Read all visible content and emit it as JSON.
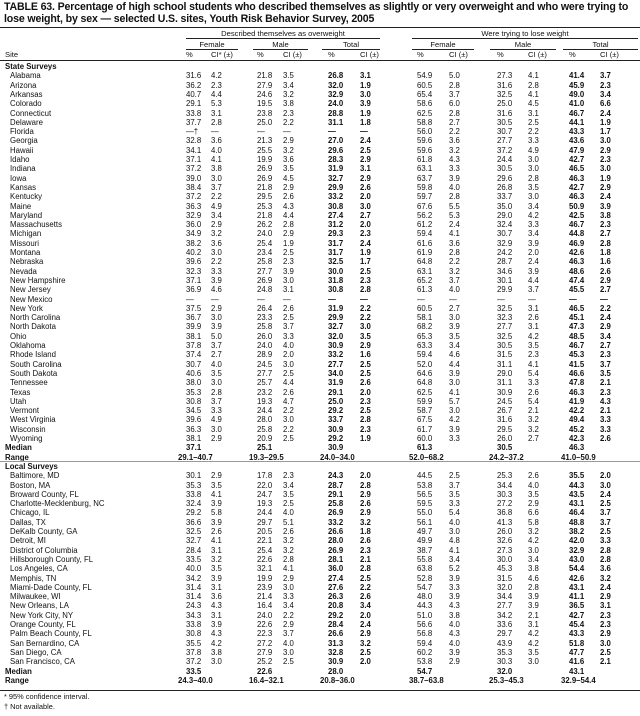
{
  "title": "TABLE 63. Percentage of high school students who described themselves as slightly or very overweight and who were trying to lose weight, by sex — selected U.S. sites, Youth Risk Behavior Survey, 2005",
  "headers": {
    "group1": "Described themselves as overweight",
    "group2": "Were trying to lose weight",
    "female": "Female",
    "male": "Male",
    "total": "Total",
    "site": "Site",
    "pct": "%",
    "ci_star": "CI* (±)",
    "ci": "CI (±)"
  },
  "state": {
    "label": "State Surveys",
    "rows": [
      {
        "site": "Alabama",
        "v": [
          "31.6",
          "4.2",
          "21.8",
          "3.5",
          "26.8",
          "3.1",
          "54.9",
          "5.0",
          "27.3",
          "4.1",
          "41.4",
          "3.7"
        ]
      },
      {
        "site": "Arizona",
        "v": [
          "36.2",
          "2.3",
          "27.9",
          "3.4",
          "32.0",
          "1.9",
          "60.5",
          "2.8",
          "31.6",
          "2.8",
          "45.9",
          "2.3"
        ]
      },
      {
        "site": "Arkansas",
        "v": [
          "40.7",
          "4.4",
          "24.6",
          "3.2",
          "32.9",
          "3.0",
          "65.4",
          "3.7",
          "32.5",
          "4.1",
          "49.0",
          "3.4"
        ]
      },
      {
        "site": "Colorado",
        "v": [
          "29.1",
          "5.3",
          "19.5",
          "3.8",
          "24.0",
          "3.9",
          "58.6",
          "6.0",
          "25.0",
          "4.5",
          "41.0",
          "6.6"
        ]
      },
      {
        "site": "Connecticut",
        "v": [
          "33.8",
          "3.1",
          "23.8",
          "2.3",
          "28.8",
          "1.9",
          "62.5",
          "2.8",
          "31.6",
          "3.1",
          "46.7",
          "2.4"
        ]
      },
      {
        "site": "Delaware",
        "v": [
          "37.7",
          "2.8",
          "25.0",
          "2.2",
          "31.1",
          "1.8",
          "58.8",
          "2.7",
          "30.5",
          "2.5",
          "44.1",
          "1.9"
        ]
      },
      {
        "site": "Florida",
        "v": [
          "—†",
          "—",
          "—",
          "—",
          "—",
          "—",
          "56.0",
          "2.2",
          "30.7",
          "2.2",
          "43.3",
          "1.7"
        ]
      },
      {
        "site": "Georgia",
        "v": [
          "32.8",
          "3.6",
          "21.3",
          "2.9",
          "27.0",
          "2.4",
          "59.6",
          "3.6",
          "27.7",
          "3.3",
          "43.6",
          "3.0"
        ]
      },
      {
        "site": "Hawaii",
        "v": [
          "34.1",
          "4.0",
          "25.5",
          "3.2",
          "29.6",
          "2.5",
          "59.6",
          "3.2",
          "37.2",
          "4.9",
          "47.9",
          "2.9"
        ]
      },
      {
        "site": "Idaho",
        "v": [
          "37.1",
          "4.1",
          "19.9",
          "3.6",
          "28.3",
          "2.9",
          "61.8",
          "4.3",
          "24.4",
          "3.0",
          "42.7",
          "2.3"
        ]
      },
      {
        "site": "Indiana",
        "v": [
          "37.2",
          "3.8",
          "26.9",
          "3.5",
          "31.9",
          "3.1",
          "63.1",
          "3.3",
          "30.5",
          "3.0",
          "46.5",
          "3.0"
        ]
      },
      {
        "site": "Iowa",
        "v": [
          "39.0",
          "3.0",
          "26.9",
          "4.5",
          "32.7",
          "2.9",
          "63.7",
          "3.9",
          "29.6",
          "2.8",
          "46.3",
          "1.9"
        ]
      },
      {
        "site": "Kansas",
        "v": [
          "38.4",
          "3.7",
          "21.8",
          "2.9",
          "29.9",
          "2.6",
          "59.8",
          "4.0",
          "26.8",
          "3.5",
          "42.7",
          "2.9"
        ]
      },
      {
        "site": "Kentucky",
        "v": [
          "37.2",
          "2.2",
          "29.5",
          "2.6",
          "33.2",
          "2.0",
          "59.7",
          "2.8",
          "33.7",
          "3.0",
          "46.3",
          "2.4"
        ]
      },
      {
        "site": "Maine",
        "v": [
          "36.3",
          "4.9",
          "25.3",
          "4.3",
          "30.8",
          "3.0",
          "67.6",
          "5.5",
          "35.0",
          "3.4",
          "50.9",
          "3.9"
        ]
      },
      {
        "site": "Maryland",
        "v": [
          "32.9",
          "3.4",
          "21.8",
          "4.4",
          "27.4",
          "2.7",
          "56.2",
          "5.3",
          "29.0",
          "4.2",
          "42.5",
          "3.8"
        ]
      },
      {
        "site": "Massachusetts",
        "v": [
          "36.0",
          "2.9",
          "26.2",
          "2.8",
          "31.2",
          "2.0",
          "61.2",
          "2.4",
          "32.4",
          "3.3",
          "46.7",
          "2.3"
        ]
      },
      {
        "site": "Michigan",
        "v": [
          "34.9",
          "3.2",
          "24.0",
          "2.9",
          "29.3",
          "2.3",
          "59.4",
          "4.1",
          "30.7",
          "3.4",
          "44.8",
          "2.7"
        ]
      },
      {
        "site": "Missouri",
        "v": [
          "38.2",
          "3.6",
          "25.4",
          "1.9",
          "31.7",
          "2.4",
          "61.6",
          "3.6",
          "32.9",
          "3.9",
          "46.9",
          "2.8"
        ]
      },
      {
        "site": "Montana",
        "v": [
          "40.2",
          "3.0",
          "23.4",
          "2.5",
          "31.7",
          "1.9",
          "61.9",
          "2.8",
          "24.2",
          "2.0",
          "42.6",
          "1.8"
        ]
      },
      {
        "site": "Nebraska",
        "v": [
          "39.6",
          "2.2",
          "25.8",
          "2.3",
          "32.5",
          "1.7",
          "64.8",
          "2.2",
          "28.7",
          "2.4",
          "46.3",
          "1.6"
        ]
      },
      {
        "site": "Nevada",
        "v": [
          "32.3",
          "3.3",
          "27.7",
          "3.9",
          "30.0",
          "2.5",
          "63.1",
          "3.2",
          "34.6",
          "3.9",
          "48.6",
          "2.6"
        ]
      },
      {
        "site": "New Hampshire",
        "v": [
          "37.1",
          "3.9",
          "26.9",
          "3.0",
          "31.8",
          "2.3",
          "65.2",
          "3.7",
          "30.1",
          "4.4",
          "47.4",
          "2.9"
        ]
      },
      {
        "site": "New Jersey",
        "v": [
          "36.9",
          "4.6",
          "24.8",
          "3.1",
          "30.8",
          "2.8",
          "61.3",
          "4.0",
          "29.9",
          "3.7",
          "45.5",
          "2.7"
        ]
      },
      {
        "site": "New Mexico",
        "v": [
          "—",
          "—",
          "—",
          "—",
          "—",
          "—",
          "—",
          "—",
          "—",
          "—",
          "—",
          "—"
        ]
      },
      {
        "site": "New York",
        "v": [
          "37.5",
          "2.9",
          "26.4",
          "2.6",
          "31.9",
          "2.2",
          "60.5",
          "2.7",
          "32.5",
          "3.1",
          "46.5",
          "2.2"
        ]
      },
      {
        "site": "North Carolina",
        "v": [
          "36.7",
          "3.0",
          "23.3",
          "2.5",
          "29.9",
          "2.2",
          "58.1",
          "3.0",
          "32.3",
          "2.6",
          "45.1",
          "2.4"
        ]
      },
      {
        "site": "North Dakota",
        "v": [
          "39.9",
          "3.9",
          "25.8",
          "3.7",
          "32.7",
          "3.0",
          "68.2",
          "3.9",
          "27.7",
          "3.1",
          "47.3",
          "2.9"
        ]
      },
      {
        "site": "Ohio",
        "v": [
          "38.1",
          "5.0",
          "26.0",
          "3.3",
          "32.0",
          "3.5",
          "65.3",
          "3.5",
          "32.5",
          "4.2",
          "48.5",
          "3.4"
        ]
      },
      {
        "site": "Oklahoma",
        "v": [
          "37.8",
          "3.7",
          "24.0",
          "4.0",
          "30.9",
          "2.9",
          "63.3",
          "3.4",
          "30.5",
          "3.5",
          "46.7",
          "2.7"
        ]
      },
      {
        "site": "Rhode Island",
        "v": [
          "37.4",
          "2.7",
          "28.9",
          "2.0",
          "33.2",
          "1.6",
          "59.4",
          "4.6",
          "31.5",
          "2.3",
          "45.3",
          "2.3"
        ]
      },
      {
        "site": "South Carolina",
        "v": [
          "30.7",
          "4.0",
          "24.5",
          "3.0",
          "27.7",
          "2.5",
          "52.0",
          "4.4",
          "31.1",
          "4.1",
          "41.5",
          "3.7"
        ]
      },
      {
        "site": "South Dakota",
        "v": [
          "40.6",
          "3.5",
          "27.7",
          "2.5",
          "34.0",
          "2.5",
          "64.6",
          "3.9",
          "29.0",
          "5.4",
          "46.6",
          "3.5"
        ]
      },
      {
        "site": "Tennessee",
        "v": [
          "38.0",
          "3.0",
          "25.7",
          "4.4",
          "31.9",
          "2.6",
          "64.8",
          "3.0",
          "31.1",
          "3.3",
          "47.8",
          "2.1"
        ]
      },
      {
        "site": "Texas",
        "v": [
          "35.3",
          "2.8",
          "23.2",
          "2.6",
          "29.1",
          "2.0",
          "62.5",
          "4.1",
          "30.9",
          "2.6",
          "46.3",
          "2.3"
        ]
      },
      {
        "site": "Utah",
        "v": [
          "30.8",
          "3.7",
          "19.3",
          "4.7",
          "25.0",
          "2.3",
          "59.9",
          "5.7",
          "24.5",
          "5.4",
          "41.9",
          "4.3"
        ]
      },
      {
        "site": "Vermont",
        "v": [
          "34.5",
          "3.3",
          "24.4",
          "2.2",
          "29.2",
          "2.5",
          "58.7",
          "3.0",
          "26.7",
          "2.1",
          "42.2",
          "2.1"
        ]
      },
      {
        "site": "West Virginia",
        "v": [
          "39.6",
          "4.9",
          "28.0",
          "3.0",
          "33.7",
          "2.8",
          "67.5",
          "4.2",
          "31.6",
          "3.2",
          "49.4",
          "3.3"
        ]
      },
      {
        "site": "Wisconsin",
        "v": [
          "36.3",
          "3.0",
          "25.8",
          "2.2",
          "30.9",
          "2.3",
          "61.7",
          "3.9",
          "29.5",
          "3.2",
          "45.2",
          "3.3"
        ]
      },
      {
        "site": "Wyoming",
        "v": [
          "38.1",
          "2.9",
          "20.9",
          "2.5",
          "29.2",
          "1.9",
          "60.0",
          "3.3",
          "26.0",
          "2.7",
          "42.3",
          "2.6"
        ]
      }
    ],
    "median_label": "Median",
    "median": [
      "37.1",
      "25.1",
      "30.9",
      "61.3",
      "30.5",
      "46.3"
    ],
    "range_label": "Range",
    "range": [
      "29.1–40.7",
      "19.3–29.5",
      "24.0–34.0",
      "52.0–68.2",
      "24.2–37.2",
      "41.0–50.9"
    ]
  },
  "local": {
    "label": "Local Surveys",
    "rows": [
      {
        "site": "Baltimore, MD",
        "v": [
          "30.1",
          "2.9",
          "17.8",
          "2.3",
          "24.3",
          "2.0",
          "44.5",
          "2.5",
          "25.3",
          "2.6",
          "35.5",
          "2.0"
        ]
      },
      {
        "site": "Boston, MA",
        "v": [
          "35.3",
          "3.5",
          "22.0",
          "3.4",
          "28.7",
          "2.8",
          "53.8",
          "3.7",
          "34.4",
          "4.0",
          "44.3",
          "3.0"
        ]
      },
      {
        "site": "Broward County, FL",
        "v": [
          "33.8",
          "4.1",
          "24.7",
          "3.5",
          "29.1",
          "2.9",
          "56.5",
          "3.5",
          "30.3",
          "3.5",
          "43.5",
          "2.4"
        ]
      },
      {
        "site": "Charlotte-Mecklenburg, NC",
        "v": [
          "32.4",
          "3.9",
          "19.3",
          "2.5",
          "25.8",
          "2.6",
          "59.5",
          "3.3",
          "27.2",
          "2.9",
          "43.1",
          "2.5"
        ]
      },
      {
        "site": "Chicago, IL",
        "v": [
          "29.2",
          "5.8",
          "24.4",
          "4.0",
          "26.9",
          "2.9",
          "55.0",
          "5.4",
          "36.8",
          "6.6",
          "46.4",
          "3.7"
        ]
      },
      {
        "site": "Dallas, TX",
        "v": [
          "36.6",
          "3.9",
          "29.7",
          "5.1",
          "33.2",
          "3.2",
          "56.1",
          "4.0",
          "41.3",
          "5.8",
          "48.8",
          "3.7"
        ]
      },
      {
        "site": "DeKalb County, GA",
        "v": [
          "32.5",
          "2.6",
          "20.5",
          "2.6",
          "26.6",
          "1.8",
          "49.7",
          "3.0",
          "26.0",
          "3.2",
          "38.2",
          "2.5"
        ]
      },
      {
        "site": "Detroit, MI",
        "v": [
          "32.7",
          "4.1",
          "22.1",
          "3.2",
          "28.0",
          "2.6",
          "49.9",
          "4.8",
          "32.6",
          "4.2",
          "42.0",
          "3.3"
        ]
      },
      {
        "site": "District of Columbia",
        "v": [
          "28.4",
          "3.1",
          "25.4",
          "3.2",
          "26.9",
          "2.3",
          "38.7",
          "4.1",
          "27.3",
          "3.0",
          "32.9",
          "2.8"
        ]
      },
      {
        "site": "Hillsborough County, FL",
        "v": [
          "33.5",
          "3.2",
          "22.6",
          "2.8",
          "28.1",
          "2.1",
          "55.8",
          "3.4",
          "30.0",
          "3.4",
          "43.0",
          "2.8"
        ]
      },
      {
        "site": "Los Angeles, CA",
        "v": [
          "40.0",
          "3.5",
          "32.1",
          "4.1",
          "36.0",
          "2.8",
          "63.8",
          "5.2",
          "45.3",
          "3.8",
          "54.4",
          "3.6"
        ]
      },
      {
        "site": "Memphis, TN",
        "v": [
          "34.2",
          "3.9",
          "19.9",
          "2.9",
          "27.4",
          "2.5",
          "52.8",
          "3.9",
          "31.5",
          "4.6",
          "42.6",
          "3.2"
        ]
      },
      {
        "site": "Miami-Dade County, FL",
        "v": [
          "31.4",
          "3.1",
          "23.9",
          "3.0",
          "27.6",
          "2.2",
          "54.7",
          "3.3",
          "32.0",
          "2.8",
          "43.1",
          "2.4"
        ]
      },
      {
        "site": "Milwaukee, WI",
        "v": [
          "31.4",
          "3.6",
          "21.4",
          "3.3",
          "26.3",
          "2.6",
          "48.0",
          "3.9",
          "34.4",
          "3.9",
          "41.1",
          "2.9"
        ]
      },
      {
        "site": "New Orleans, LA",
        "v": [
          "24.3",
          "4.3",
          "16.4",
          "3.4",
          "20.8",
          "3.4",
          "44.3",
          "4.3",
          "27.7",
          "3.9",
          "36.5",
          "3.1"
        ]
      },
      {
        "site": "New York City, NY",
        "v": [
          "34.3",
          "3.1",
          "24.0",
          "2.2",
          "29.2",
          "2.0",
          "51.0",
          "3.8",
          "34.2",
          "2.1",
          "42.7",
          "2.3"
        ]
      },
      {
        "site": "Orange County, FL",
        "v": [
          "33.8",
          "3.9",
          "22.6",
          "2.9",
          "28.4",
          "2.4",
          "56.6",
          "4.0",
          "33.6",
          "3.1",
          "45.4",
          "2.3"
        ]
      },
      {
        "site": "Palm Beach County, FL",
        "v": [
          "30.8",
          "4.3",
          "22.3",
          "3.7",
          "26.6",
          "2.9",
          "56.8",
          "4.3",
          "29.7",
          "4.2",
          "43.3",
          "2.9"
        ]
      },
      {
        "site": "San Bernardino, CA",
        "v": [
          "35.5",
          "4.2",
          "27.2",
          "4.0",
          "31.3",
          "3.2",
          "59.4",
          "4.0",
          "43.9",
          "4.2",
          "51.8",
          "3.0"
        ]
      },
      {
        "site": "San Diego, CA",
        "v": [
          "37.8",
          "3.8",
          "27.9",
          "3.0",
          "32.8",
          "2.5",
          "60.2",
          "3.9",
          "35.3",
          "3.5",
          "47.7",
          "2.5"
        ]
      },
      {
        "site": "San Francisco, CA",
        "v": [
          "37.2",
          "3.0",
          "25.2",
          "2.5",
          "30.9",
          "2.0",
          "53.8",
          "2.9",
          "30.3",
          "3.0",
          "41.6",
          "2.1"
        ]
      }
    ],
    "median_label": "Median",
    "median": [
      "33.5",
      "22.6",
      "28.0",
      "54.7",
      "32.0",
      "43.1"
    ],
    "range_label": "Range",
    "range": [
      "24.3–40.0",
      "16.4–32.1",
      "20.8–36.0",
      "38.7–63.8",
      "25.3–45.3",
      "32.9–54.4"
    ]
  },
  "footnotes": [
    "* 95% confidence interval.",
    "† Not available."
  ]
}
